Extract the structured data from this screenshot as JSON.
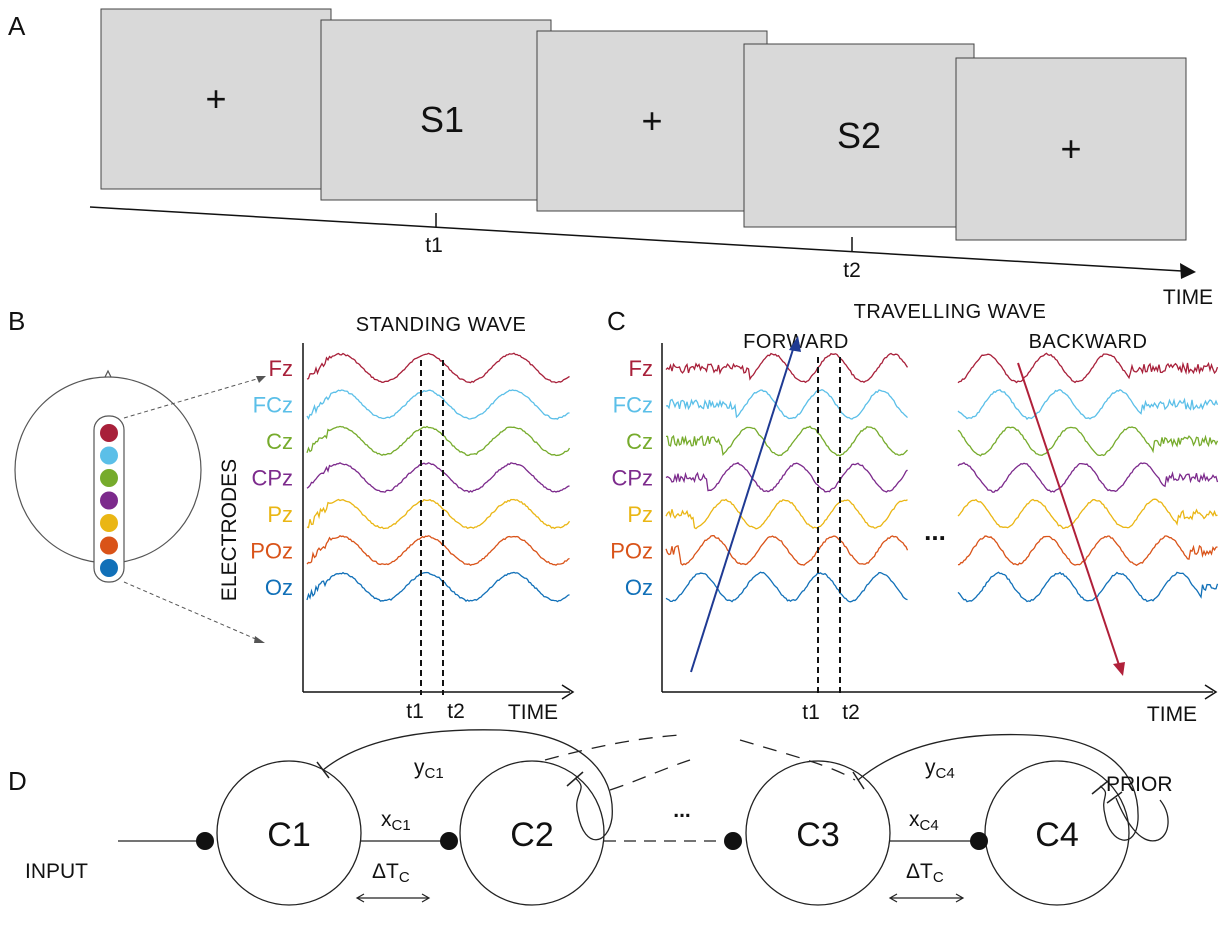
{
  "panels": {
    "a": "A",
    "b": "B",
    "c": "C",
    "d": "D"
  },
  "panel_a": {
    "screens": [
      "+",
      "S1",
      "+",
      "S2",
      "+"
    ],
    "ticks": [
      "t1",
      "t2"
    ],
    "axis_label": "TIME"
  },
  "electrodes": [
    {
      "name": "Fz",
      "color": "#a8203a"
    },
    {
      "name": "FCz",
      "color": "#5bbfe8"
    },
    {
      "name": "Cz",
      "color": "#76ab2c"
    },
    {
      "name": "CPz",
      "color": "#7c2a8c"
    },
    {
      "name": "Pz",
      "color": "#eab614"
    },
    {
      "name": "POz",
      "color": "#d95319"
    },
    {
      "name": "Oz",
      "color": "#1170b8"
    }
  ],
  "panel_b": {
    "title": "STANDING WAVE",
    "ylabel": "ELECTRODES",
    "xlabel": "TIME",
    "ticks": [
      "t1",
      "t2"
    ]
  },
  "panel_c": {
    "title": "TRAVELLING WAVE",
    "forward": "FORWARD",
    "backward": "BACKWARD",
    "forward_color": "#1f3a93",
    "backward_color": "#b0203a",
    "ellipsis": "...",
    "xlabel": "TIME",
    "ticks": [
      "t1",
      "t2"
    ]
  },
  "panel_d": {
    "nodes": [
      "C1",
      "C2",
      "C3",
      "C4"
    ],
    "input": "INPUT",
    "prior": "PRIOR",
    "ellipsis": "...",
    "y_main": "y",
    "y1_sub": "C1",
    "y4_sub": "C4",
    "x_main": "x",
    "x1_sub": "C1",
    "x4_sub": "C4",
    "delta_main": "ΔT",
    "delta_sub": "C"
  }
}
